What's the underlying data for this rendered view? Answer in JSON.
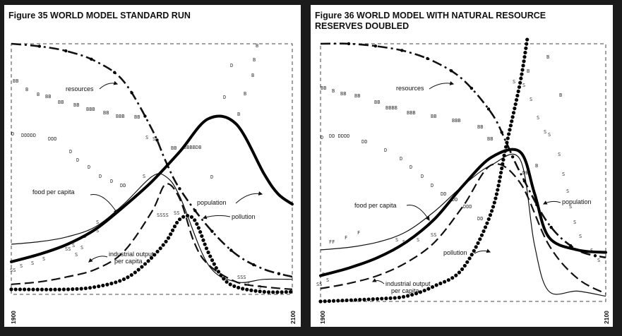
{
  "chart_data": [
    {
      "type": "line",
      "title_lines": [
        "Figure 35 WORLD MODEL STANDARD RUN"
      ],
      "x_tick_labels": [
        "1900",
        "2100"
      ],
      "xlim": [
        1900,
        2100
      ],
      "ylim": [
        0,
        1
      ],
      "grid": false,
      "legend": "inline labels with arrows",
      "annotations": [
        "resources",
        "food per capita",
        "population",
        "pollution",
        "industrial output per capita"
      ],
      "series": [
        {
          "name": "resources",
          "style": "dash-dot",
          "x": [
            1900,
            1920,
            1940,
            1960,
            1980,
            2000,
            2010,
            2020,
            2040,
            2060,
            2080,
            2100
          ],
          "y": [
            1.0,
            0.99,
            0.97,
            0.93,
            0.85,
            0.66,
            0.53,
            0.42,
            0.27,
            0.16,
            0.1,
            0.07
          ]
        },
        {
          "name": "food per capita",
          "style": "thin-f",
          "x": [
            1900,
            1920,
            1940,
            1960,
            1980,
            2000,
            2010,
            2020,
            2040,
            2060,
            2080,
            2100
          ],
          "y": [
            0.2,
            0.21,
            0.23,
            0.27,
            0.36,
            0.47,
            0.47,
            0.39,
            0.12,
            0.05,
            0.06,
            0.06
          ]
        },
        {
          "name": "population",
          "style": "thick",
          "x": [
            1900,
            1920,
            1940,
            1960,
            1980,
            2000,
            2020,
            2040,
            2060,
            2080,
            2090,
            2100
          ],
          "y": [
            0.13,
            0.16,
            0.2,
            0.26,
            0.35,
            0.45,
            0.57,
            0.7,
            0.68,
            0.48,
            0.4,
            0.36
          ]
        },
        {
          "name": "pollution",
          "style": "dotted",
          "x": [
            1900,
            1940,
            1960,
            1980,
            1995,
            2010,
            2020,
            2030,
            2040,
            2050,
            2060,
            2080,
            2100
          ],
          "y": [
            0.02,
            0.02,
            0.03,
            0.06,
            0.12,
            0.21,
            0.3,
            0.3,
            0.17,
            0.07,
            0.03,
            0.01,
            0.01
          ]
        },
        {
          "name": "industrial output per capita",
          "style": "long-dash",
          "x": [
            1900,
            1920,
            1940,
            1960,
            1980,
            2000,
            2010,
            2020,
            2030,
            2040,
            2060,
            2080,
            2100
          ],
          "y": [
            0.04,
            0.05,
            0.07,
            0.1,
            0.17,
            0.33,
            0.44,
            0.38,
            0.21,
            0.12,
            0.05,
            0.03,
            0.02
          ]
        }
      ]
    },
    {
      "type": "line",
      "title_lines": [
        "Figure 36 WORLD MODEL WITH NATURAL RESOURCE",
        "RESERVES DOUBLED"
      ],
      "x_tick_labels": [
        "1900",
        "2100"
      ],
      "xlim": [
        1900,
        2100
      ],
      "ylim": [
        0,
        1
      ],
      "grid": false,
      "legend": "inline labels with arrows",
      "annotations": [
        "resources",
        "food per capita",
        "population",
        "pollution",
        "industrial output per capita"
      ],
      "series": [
        {
          "name": "resources",
          "style": "dash-dot",
          "x": [
            1900,
            1920,
            1940,
            1960,
            1980,
            2000,
            2020,
            2030,
            2040,
            2060,
            2080,
            2100
          ],
          "y": [
            1.0,
            1.0,
            0.99,
            0.97,
            0.93,
            0.86,
            0.73,
            0.62,
            0.5,
            0.3,
            0.2,
            0.17
          ]
        },
        {
          "name": "food per capita",
          "style": "thin-f",
          "x": [
            1900,
            1920,
            1940,
            1960,
            1980,
            2000,
            2020,
            2040,
            2050,
            2060,
            2080,
            2100
          ],
          "y": [
            0.2,
            0.21,
            0.23,
            0.27,
            0.35,
            0.45,
            0.53,
            0.55,
            0.22,
            0.04,
            0.04,
            0.02
          ]
        },
        {
          "name": "population",
          "style": "thick",
          "x": [
            1900,
            1920,
            1940,
            1960,
            1980,
            2000,
            2020,
            2040,
            2050,
            2060,
            2080,
            2100
          ],
          "y": [
            0.1,
            0.13,
            0.17,
            0.23,
            0.32,
            0.45,
            0.56,
            0.58,
            0.42,
            0.25,
            0.2,
            0.19
          ]
        },
        {
          "name": "pollution",
          "style": "dotted",
          "x": [
            1900,
            1940,
            1960,
            1980,
            2000,
            2020,
            2030,
            2040,
            2045
          ],
          "y": [
            0.0,
            0.01,
            0.02,
            0.06,
            0.13,
            0.35,
            0.6,
            0.85,
            1.02
          ]
        },
        {
          "name": "industrial output per capita",
          "style": "long-dash",
          "x": [
            1900,
            1920,
            1940,
            1960,
            1980,
            2000,
            2020,
            2040,
            2060,
            2080,
            2100
          ],
          "y": [
            0.05,
            0.07,
            0.1,
            0.15,
            0.23,
            0.37,
            0.53,
            0.46,
            0.22,
            0.09,
            0.03
          ]
        }
      ]
    }
  ]
}
